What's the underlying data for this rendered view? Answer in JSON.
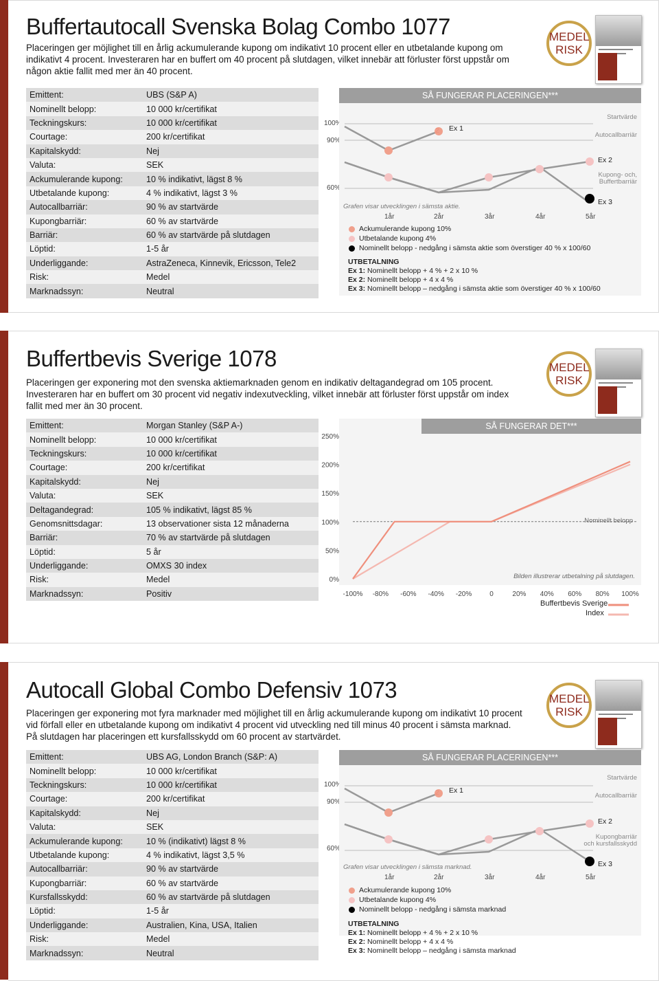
{
  "products": [
    {
      "title": "Buffertautocall Svenska Bolag Combo 1077",
      "description": "Placeringen ger möjlighet till en årlig ackumulerande kupong om indikativt 10 procent eller en utbetalande kupong om indikativt 4 procent. Investeraren har en buffert om 40 procent på slutdagen, vilket innebär att förluster först uppstår om någon aktie fallit med mer än 40 procent.",
      "risk_badge": [
        "MEDEL",
        "RISK"
      ],
      "facts": [
        {
          "label": "Emittent:",
          "value": "UBS (S&P A)"
        },
        {
          "label": "Nominellt belopp:",
          "value": "10 000 kr/certifikat"
        },
        {
          "label": "Teckningskurs:",
          "value": "10 000 kr/certifikat"
        },
        {
          "label": "Courtage:",
          "value": "200 kr/certifikat"
        },
        {
          "label": "Kapitalskydd:",
          "value": "Nej"
        },
        {
          "label": "Valuta:",
          "value": "SEK"
        },
        {
          "label": "Ackumulerande kupong:",
          "value": "10 % indikativt, lägst 8 %"
        },
        {
          "label": "Utbetalande kupong:",
          "value": "4 % indikativt, lägst 3 %"
        },
        {
          "label": "Autocallbarriär:",
          "value": "90 % av startvärde"
        },
        {
          "label": "Kupongbarriär:",
          "value": "60 % av startvärde"
        },
        {
          "label": "Barriär:",
          "value": "60 % av startvärde på slutdagen"
        },
        {
          "label": "Löptid:",
          "value": "1-5 år"
        },
        {
          "label": "Underliggande:",
          "value": "AstraZeneca, Kinnevik, Ericsson, Tele2"
        },
        {
          "label": "Risk:",
          "value": "Medel"
        },
        {
          "label": "Marknadssyn:",
          "value": "Neutral"
        }
      ],
      "chart": {
        "heading": "SÅ FUNGERAR PLACERINGEN***",
        "y_ticks": [
          "100%",
          "90%",
          "60%"
        ],
        "x_ticks": [
          "1år",
          "2år",
          "3år",
          "4år",
          "5år"
        ],
        "note": "Grafen visar utvecklingen i sämsta aktie.",
        "right_labels": [
          "Startvärde",
          "Autocallbarriär",
          "Kupong- och,",
          "Buffertbarriär"
        ],
        "ex_labels": [
          "Ex 1",
          "Ex 2",
          "Ex 3"
        ],
        "marker_number": "2",
        "legend": [
          "Ackumulerande kupong 10%",
          "Utbetalande kupong 4%",
          "Nominellt belopp - nedgång i sämsta aktie som överstiger 40 % x 100/60"
        ],
        "payout_heading": "UTBETALNING",
        "payout": [
          {
            "k": "Ex 1:",
            "v": " Nominellt belopp + 4 % + 2 x 10 %"
          },
          {
            "k": "Ex 2:",
            "v": " Nominellt belopp + 4 x 4 %"
          },
          {
            "k": "Ex 3:",
            "v": " Nominellt belopp – nedgång i sämsta aktie som överstiger 40 % x 100/60"
          }
        ],
        "colors": {
          "accumulating": "#f0a08c",
          "paying": "#f5c3c3",
          "nominal": "#000000"
        }
      }
    },
    {
      "title": "Buffertbevis Sverige 1078",
      "description": "Placeringen ger exponering mot den svenska aktiemarknaden genom en indikativ deltagandegrad om 105 procent. Investeraren har en buffert om 30 procent vid negativ indexutveckling, vilket innebär att förluster först uppstår om index fallit med mer än 30 procent.",
      "risk_badge": [
        "MEDEL",
        "RISK"
      ],
      "facts": [
        {
          "label": "Emittent:",
          "value": "Morgan Stanley (S&P A-)"
        },
        {
          "label": "Nominellt belopp:",
          "value": "10 000 kr/certifikat"
        },
        {
          "label": "Teckningskurs:",
          "value": "10 000 kr/certifikat"
        },
        {
          "label": "Courtage:",
          "value": "200 kr/certifikat"
        },
        {
          "label": "Kapitalskydd:",
          "value": "Nej"
        },
        {
          "label": "Valuta:",
          "value": "SEK"
        },
        {
          "label": "Deltagandegrad:",
          "value": "105 % indikativt, lägst 85 %"
        },
        {
          "label": "Genomsnittsdagar:",
          "value": "13 observationer sista 12 månaderna"
        },
        {
          "label": "Barriär:",
          "value": "70 % av startvärde på slutdagen"
        },
        {
          "label": "Löptid:",
          "value": "5 år"
        },
        {
          "label": "Underliggande:",
          "value": "OMXS 30 index"
        },
        {
          "label": "Risk:",
          "value": "Medel"
        },
        {
          "label": "Marknadssyn:",
          "value": "Positiv"
        }
      ],
      "chart_data": {
        "type": "line",
        "title": "SÅ FUNGERAR DET***",
        "x": [
          -100,
          -80,
          -60,
          -40,
          -20,
          0,
          20,
          40,
          60,
          80,
          100
        ],
        "x_tick_labels": [
          "-100%",
          "-80%",
          "-60%",
          "-40%",
          "-20%",
          "0",
          "20%",
          "40%",
          "60%",
          "80%",
          "100%"
        ],
        "y_tick_labels": [
          "250%",
          "200%",
          "150%",
          "100%",
          "50%",
          "0%"
        ],
        "ylim": [
          0,
          250
        ],
        "xlim": [
          -100,
          100
        ],
        "series": [
          {
            "name": "Buffertbevis Sverige",
            "color": "#ef8f7c",
            "x": [
              -100,
              -70,
              -30,
              0,
              100
            ],
            "y": [
              0,
              100,
              100,
              100,
              205
            ]
          },
          {
            "name": "Index",
            "color": "#f4b8b0",
            "x": [
              -100,
              -30,
              0,
              100
            ],
            "y": [
              0,
              100,
              100,
              200
            ]
          }
        ],
        "reference_line_label": "Nominellt belopp",
        "reference_y": 100,
        "note": "Bilden illustrerar utbetalning på slutdagen."
      }
    },
    {
      "title": "Autocall Global Combo Defensiv 1073",
      "description": "Placeringen ger exponering mot fyra marknader med möjlighet till en årlig ackumulerande kupong om indikativt 10 procent vid förfall eller en utbetalande kupong om indikativt 4 procent vid utveckling ned till minus 40 procent i sämsta marknad. På slutdagen har placeringen ett kursfallsskydd om 60 procent av startvärdet.",
      "risk_badge": [
        "MEDEL",
        "RISK"
      ],
      "facts": [
        {
          "label": "Emittent:",
          "value": "UBS AG, London Branch (S&P: A)"
        },
        {
          "label": "Nominellt belopp:",
          "value": "10 000 kr/certifikat"
        },
        {
          "label": "Teckningskurs:",
          "value": "10 000 kr/certifikat"
        },
        {
          "label": "Courtage:",
          "value": "200 kr/certifikat"
        },
        {
          "label": "Kapitalskydd:",
          "value": "Nej"
        },
        {
          "label": "Valuta:",
          "value": "SEK"
        },
        {
          "label": "Ackumulerande kupong:",
          "value": "10 % (indikativt) lägst 8 %"
        },
        {
          "label": "Utbetalande kupong:",
          "value": "4 % indikativt, lägst 3,5 %"
        },
        {
          "label": "Autocallbarriär:",
          "value": "90 % av startvärde"
        },
        {
          "label": "Kupongbarriär:",
          "value": "60 % av startvärde"
        },
        {
          "label": "Kursfallsskydd:",
          "value": "60 % av startvärde på slutdagen"
        },
        {
          "label": "Löptid:",
          "value": "1-5 år"
        },
        {
          "label": "Underliggande:",
          "value": "Australien, Kina, USA, Italien"
        },
        {
          "label": "Risk:",
          "value": "Medel"
        },
        {
          "label": "Marknadssyn:",
          "value": "Neutral"
        }
      ],
      "chart": {
        "heading": "SÅ FUNGERAR PLACERINGEN***",
        "y_ticks": [
          "100%",
          "90%",
          "60%"
        ],
        "x_ticks": [
          "1år",
          "2år",
          "3år",
          "4år",
          "5år"
        ],
        "note": "Grafen visar utvecklingen i sämsta marknad.",
        "right_labels": [
          "Startvärde",
          "Autocallbarriär",
          "Kupongbarriär",
          "och kursfallsskydd"
        ],
        "ex_labels": [
          "Ex 1",
          "Ex 2",
          "Ex 3"
        ],
        "marker_number": "2",
        "legend": [
          "Ackumulerande kupong 10%",
          "Utbetalande kupong 4%",
          "Nominellt belopp - nedgång i sämsta marknad"
        ],
        "payout_heading": "UTBETALNING",
        "payout": [
          {
            "k": "Ex 1:",
            "v": " Nominellt belopp + 4 % + 2 x 10 %"
          },
          {
            "k": "Ex 2:",
            "v": " Nominellt belopp + 4 x 4 %"
          },
          {
            "k": "Ex 3:",
            "v": " Nominellt belopp – nedgång i sämsta marknad"
          }
        ],
        "colors": {
          "accumulating": "#f0a08c",
          "paying": "#f5c3c3",
          "nominal": "#000000"
        }
      }
    }
  ]
}
